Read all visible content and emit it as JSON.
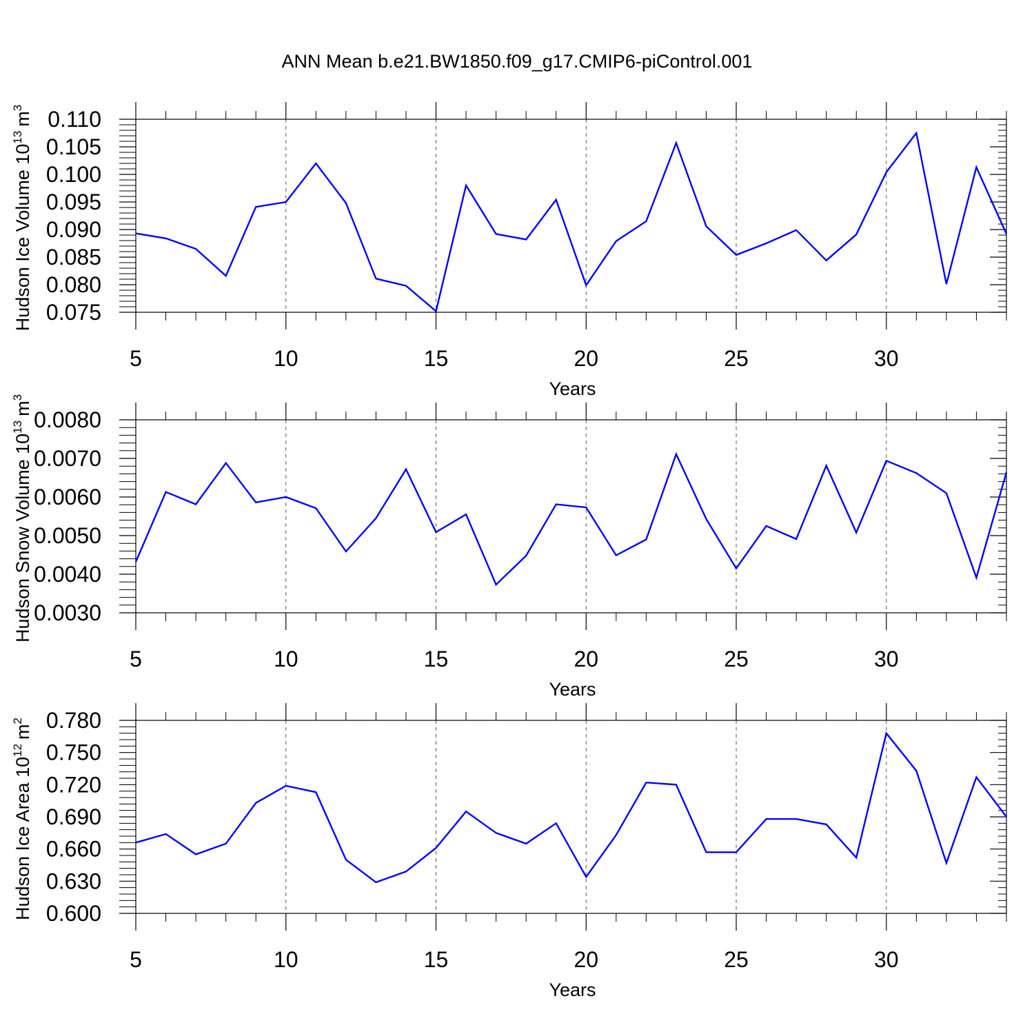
{
  "title": "ANN Mean b.e21.BW1850.f09_g17.CMIP6-piControl.001",
  "colors": {
    "line": "#0000ff",
    "axis": "#000000",
    "grid": "#555555"
  },
  "chart_data": [
    {
      "type": "line",
      "title": "",
      "xlabel": "Years",
      "ylabel": {
        "text": "Hudson Ice Volume 10",
        "exp": "13",
        "unit": "m",
        "unit_exp": "3"
      },
      "xlim": [
        5,
        34
      ],
      "ylim": [
        0.075,
        0.11
      ],
      "yticks": [
        "0.075",
        "0.080",
        "0.085",
        "0.090",
        "0.095",
        "0.100",
        "0.105",
        "0.110"
      ],
      "xticks": [
        "5",
        "10",
        "15",
        "20",
        "25",
        "30"
      ],
      "grid": "vertical dashed at labeled x ticks",
      "x": [
        5,
        6,
        7,
        8,
        9,
        10,
        11,
        12,
        13,
        14,
        15,
        16,
        17,
        18,
        19,
        20,
        21,
        22,
        23,
        24,
        25,
        26,
        27,
        28,
        29,
        30,
        31,
        32,
        33,
        34
      ],
      "values": [
        0.0893,
        0.0884,
        0.0865,
        0.0816,
        0.0941,
        0.095,
        0.102,
        0.0948,
        0.0811,
        0.0798,
        0.0752,
        0.098,
        0.0892,
        0.0882,
        0.0954,
        0.0799,
        0.0879,
        0.0915,
        0.1057,
        0.0906,
        0.0854,
        0.0875,
        0.0899,
        0.0844,
        0.0891,
        0.1004,
        0.1075,
        0.0801,
        0.1013,
        0.0892
      ]
    },
    {
      "type": "line",
      "title": "",
      "xlabel": "Years",
      "ylabel": {
        "text": "Hudson Snow Volume 10",
        "exp": "13",
        "unit": "m",
        "unit_exp": "3"
      },
      "xlim": [
        5,
        34
      ],
      "ylim": [
        0.003,
        0.008
      ],
      "yticks": [
        "0.0030",
        "0.0040",
        "0.0050",
        "0.0060",
        "0.0070",
        "0.0080"
      ],
      "xticks": [
        "5",
        "10",
        "15",
        "20",
        "25",
        "30"
      ],
      "grid": "vertical dashed at labeled x ticks",
      "x": [
        5,
        6,
        7,
        8,
        9,
        10,
        11,
        12,
        13,
        14,
        15,
        16,
        17,
        18,
        19,
        20,
        21,
        22,
        23,
        24,
        25,
        26,
        27,
        28,
        29,
        30,
        31,
        32,
        33,
        34
      ],
      "values": [
        0.00432,
        0.00613,
        0.00581,
        0.00688,
        0.00586,
        0.006,
        0.00571,
        0.00459,
        0.00545,
        0.00672,
        0.00509,
        0.00555,
        0.00373,
        0.00448,
        0.00581,
        0.00573,
        0.00449,
        0.0049,
        0.00711,
        0.00543,
        0.00415,
        0.00525,
        0.00491,
        0.00681,
        0.00508,
        0.00694,
        0.00662,
        0.0061,
        0.00391,
        0.00664
      ]
    },
    {
      "type": "line",
      "title": "",
      "xlabel": "Years",
      "ylabel": {
        "text": "Hudson Ice Area 10",
        "exp": "12",
        "unit": "m",
        "unit_exp": "2"
      },
      "xlim": [
        5,
        34
      ],
      "ylim": [
        0.6,
        0.78
      ],
      "yticks": [
        "0.600",
        "0.630",
        "0.660",
        "0.690",
        "0.720",
        "0.750",
        "0.780"
      ],
      "xticks": [
        "5",
        "10",
        "15",
        "20",
        "25",
        "30"
      ],
      "grid": "vertical dashed at labeled x ticks",
      "x": [
        5,
        6,
        7,
        8,
        9,
        10,
        11,
        12,
        13,
        14,
        15,
        16,
        17,
        18,
        19,
        20,
        21,
        22,
        23,
        24,
        25,
        26,
        27,
        28,
        29,
        30,
        31,
        32,
        33,
        34
      ],
      "values": [
        0.666,
        0.674,
        0.655,
        0.665,
        0.703,
        0.719,
        0.713,
        0.65,
        0.629,
        0.639,
        0.661,
        0.695,
        0.675,
        0.665,
        0.684,
        0.634,
        0.673,
        0.722,
        0.72,
        0.657,
        0.657,
        0.688,
        0.688,
        0.683,
        0.652,
        0.768,
        0.733,
        0.647,
        0.727,
        0.69
      ]
    }
  ]
}
